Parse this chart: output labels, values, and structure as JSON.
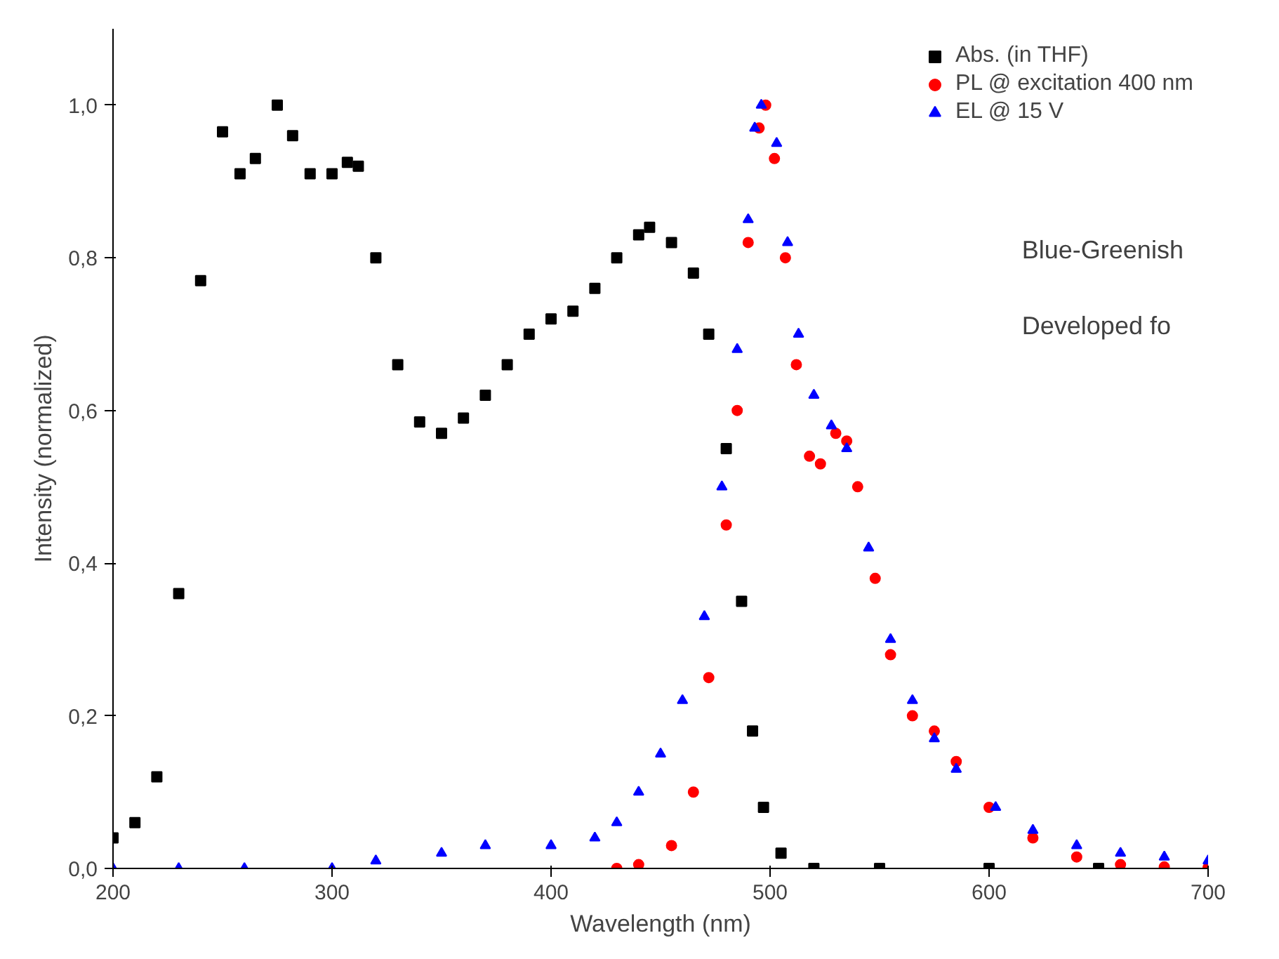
{
  "chart_data": {
    "type": "scatter",
    "xlabel": "Wavelength (nm)",
    "ylabel": "Intensity (normalized)",
    "xlim": [
      200,
      700
    ],
    "ylim": [
      0,
      1.1
    ],
    "xticks": [
      200,
      300,
      400,
      500,
      600,
      700
    ],
    "yticks": [
      {
        "value": 0,
        "label": "0,0"
      },
      {
        "value": 0.2,
        "label": "0,2"
      },
      {
        "value": 0.4,
        "label": "0,4"
      },
      {
        "value": 0.6,
        "label": "0,6"
      },
      {
        "value": 0.8,
        "label": "0,8"
      },
      {
        "value": 1.0,
        "label": "1,0"
      }
    ],
    "grid": false,
    "legend": "top right",
    "annotations": [
      "Blue-Greenish",
      "Developed fo"
    ],
    "series": [
      {
        "name": "Abs. (in THF)",
        "color": "#000000",
        "marker": "square",
        "x": [
          200,
          210,
          220,
          230,
          240,
          250,
          258,
          265,
          275,
          282,
          290,
          300,
          307,
          312,
          320,
          330,
          340,
          350,
          360,
          370,
          380,
          390,
          400,
          410,
          420,
          430,
          440,
          445,
          455,
          465,
          472,
          480,
          487,
          492,
          497,
          505,
          520,
          550,
          600,
          650
        ],
        "values": [
          0.04,
          0.06,
          0.12,
          0.36,
          0.77,
          0.965,
          0.91,
          0.93,
          1.0,
          0.96,
          0.91,
          0.91,
          0.925,
          0.92,
          0.8,
          0.66,
          0.585,
          0.57,
          0.59,
          0.62,
          0.66,
          0.7,
          0.72,
          0.73,
          0.76,
          0.8,
          0.83,
          0.84,
          0.82,
          0.78,
          0.7,
          0.55,
          0.35,
          0.18,
          0.08,
          0.02,
          0,
          0,
          0,
          0
        ]
      },
      {
        "name": "PL @ excitation 400 nm",
        "color": "#ff0000",
        "marker": "circle",
        "x": [
          430,
          440,
          455,
          465,
          472,
          480,
          485,
          490,
          495,
          498,
          502,
          507,
          512,
          518,
          523,
          530,
          535,
          540,
          548,
          555,
          565,
          575,
          585,
          600,
          620,
          640,
          660,
          680,
          700
        ],
        "values": [
          0,
          0.005,
          0.03,
          0.1,
          0.25,
          0.45,
          0.6,
          0.82,
          0.97,
          1.0,
          0.93,
          0.8,
          0.66,
          0.54,
          0.53,
          0.57,
          0.56,
          0.5,
          0.38,
          0.28,
          0.2,
          0.18,
          0.14,
          0.08,
          0.04,
          0.015,
          0.005,
          0.002,
          0.001
        ]
      },
      {
        "name": "EL @ 15 V",
        "color": "#0000ff",
        "marker": "triangle",
        "x": [
          200,
          230,
          260,
          300,
          320,
          350,
          370,
          400,
          420,
          430,
          440,
          450,
          460,
          470,
          478,
          485,
          490,
          493,
          496,
          503,
          508,
          513,
          520,
          528,
          535,
          545,
          555,
          565,
          575,
          585,
          603,
          620,
          640,
          660,
          680,
          700
        ],
        "values": [
          0,
          0,
          0,
          0,
          0.01,
          0.02,
          0.03,
          0.03,
          0.04,
          0.06,
          0.1,
          0.15,
          0.22,
          0.33,
          0.5,
          0.68,
          0.85,
          0.97,
          1.0,
          0.95,
          0.82,
          0.7,
          0.62,
          0.58,
          0.55,
          0.42,
          0.3,
          0.22,
          0.17,
          0.13,
          0.08,
          0.05,
          0.03,
          0.02,
          0.015,
          0.01
        ]
      }
    ]
  }
}
